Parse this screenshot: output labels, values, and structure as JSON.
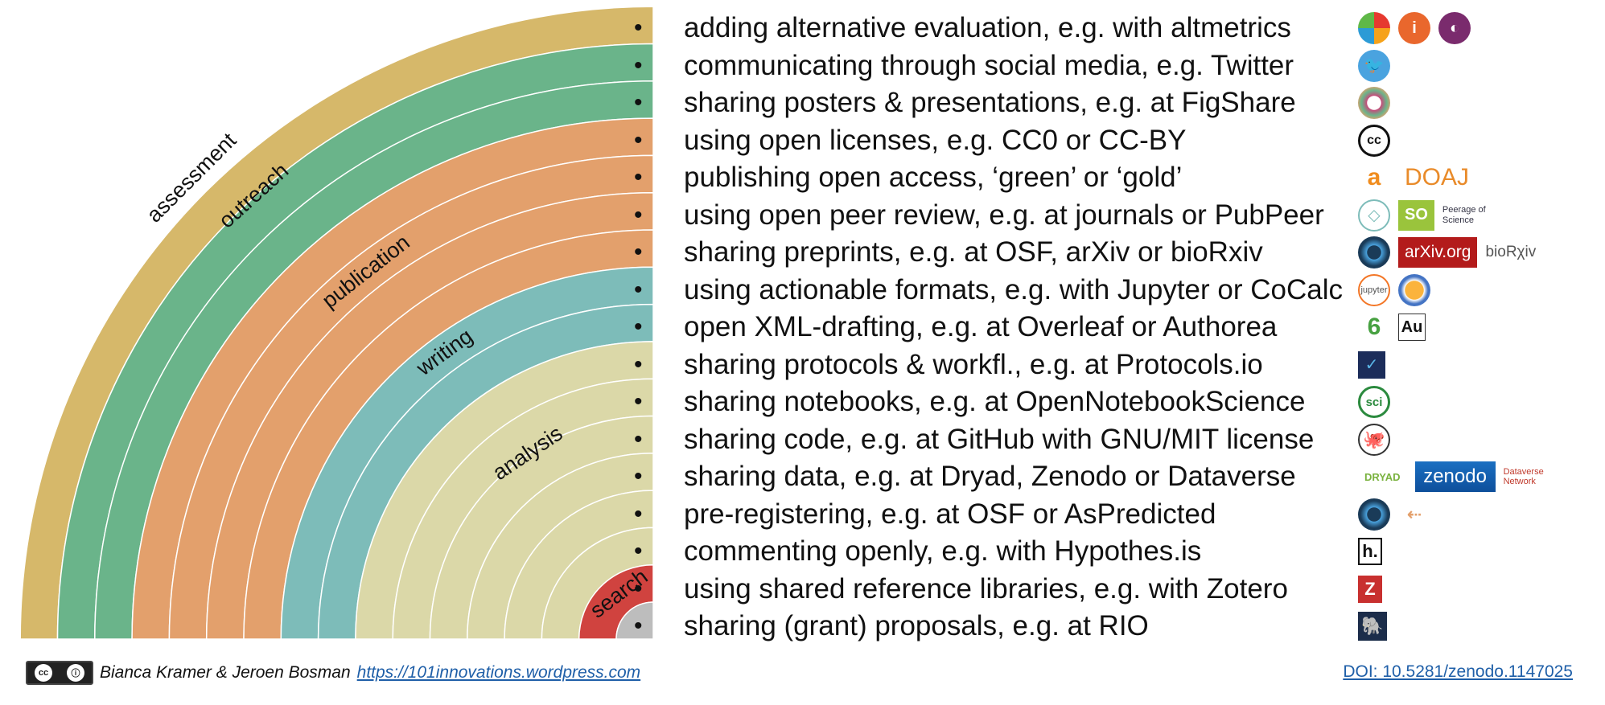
{
  "colors": {
    "assessment": "#d6b86a",
    "outreach": "#6ab48a",
    "publication": "#e3a06c",
    "writing": "#7dbcb9",
    "analysis": "#dbd8a8",
    "search": "#d0433f",
    "core": "#bdbdbd"
  },
  "phases": [
    {
      "label": "assessment",
      "color": "#d6b86a"
    },
    {
      "label": "outreach",
      "color": "#6ab48a"
    },
    {
      "label": "publication",
      "color": "#e3a06c"
    },
    {
      "label": "writing",
      "color": "#7dbcb9"
    },
    {
      "label": "analysis",
      "color": "#dbd8a8"
    },
    {
      "label": "search",
      "color": "#d0433f"
    }
  ],
  "items": [
    "adding alternative evaluation, e.g. with altmetrics",
    "communicating through social media, e.g. Twitter",
    "sharing posters & presentations, e.g. at FigShare",
    "using open licenses, e.g. CC0 or CC-BY",
    "publishing open access, ‘green’ or ‘gold’",
    "using open peer review, e.g. at journals or PubPeer",
    "sharing preprints, e.g. at OSF, arXiv or bioRxiv",
    "using actionable formats, e.g. with Jupyter or CoCalc",
    "open XML-drafting, e.g. at Overleaf or Authorea",
    "sharing protocols & workfl., e.g. at Protocols.io",
    "sharing notebooks, e.g. at OpenNotebookScience",
    "sharing code, e.g. at GitHub with GNU/MIT license",
    "sharing data, e.g. at Dryad, Zenodo or Dataverse",
    "pre-registering, e.g. at OSF or AsPredicted",
    "commenting openly, e.g. with Hypothes.is",
    "using shared reference libraries, e.g. with Zotero",
    "sharing (grant) proposals, e.g. at RIO"
  ],
  "bullet": "•",
  "icon_labels": {
    "doaj": "DOAJ",
    "arxiv": "arXiv.org",
    "biorxiv": "bioRχiv",
    "jupyter": "jupyter",
    "authorea": "Au",
    "sci": "sci",
    "dryad": "DRYAD",
    "zenodo": "zenodo",
    "dataverse": "Dataverse Network",
    "hypothesis": "h.",
    "zotero": "Z",
    "so": "SO",
    "peerage": "Peerage of Science",
    "cc": "cc"
  },
  "footer": {
    "authors": "Bianca Kramer & Jeroen Bosman",
    "url": "https://101innovations.wordpress.com",
    "doi": "DOI: 10.5281/zenodo.1147025",
    "cc_badge_icons": [
      "cc-icon",
      "by-icon"
    ]
  }
}
